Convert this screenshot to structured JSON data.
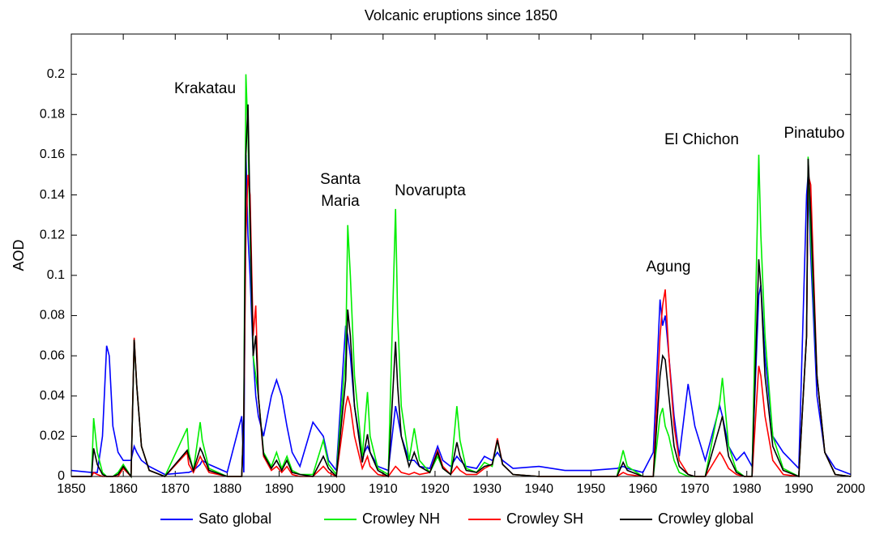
{
  "chart_data": {
    "type": "line",
    "title": "Volcanic eruptions since 1850",
    "y_label": "AOD",
    "xlim": [
      1850,
      2000
    ],
    "xticks": [
      1850,
      1860,
      1870,
      1880,
      1890,
      1900,
      1910,
      1920,
      1930,
      1940,
      1950,
      1960,
      1970,
      1980,
      1990,
      2000
    ],
    "ylim": [
      0,
      0.22
    ],
    "yticks": [
      0,
      0.02,
      0.04,
      0.06,
      0.08,
      0.1,
      0.12,
      0.14,
      0.16,
      0.18,
      0.2
    ],
    "grid": false,
    "legend": "bottom",
    "annotations": [
      [
        "Krakatau"
      ],
      [
        "Santa",
        "Maria"
      ],
      [
        "Novarupta"
      ],
      [
        "Agung"
      ],
      [
        "El Chichon"
      ],
      [
        "Pinatubo"
      ]
    ],
    "x": [
      1850,
      1853.9,
      1854.3,
      1855,
      1856,
      1856.8,
      1857.3,
      1858,
      1859,
      1860,
      1861.5,
      1862.1,
      1862.6,
      1863.5,
      1865,
      1868,
      1872.3,
      1872.6,
      1873.5,
      1874.8,
      1875.2,
      1876.5,
      1880,
      1882.8,
      1883.2,
      1883.6,
      1884,
      1884.4,
      1885,
      1885.5,
      1886,
      1887,
      1888.5,
      1889.5,
      1890.5,
      1891.5,
      1892.5,
      1894,
      1896.5,
      1898.5,
      1899.5,
      1901,
      1902.8,
      1903.2,
      1903.7,
      1904.5,
      1906,
      1907,
      1907.5,
      1909,
      1911,
      1912.4,
      1912.8,
      1913.5,
      1915,
      1916,
      1917,
      1919,
      1920.5,
      1921.5,
      1923,
      1924.2,
      1924.8,
      1926,
      1928,
      1929.5,
      1931,
      1932,
      1933,
      1935,
      1940,
      1945,
      1950,
      1955,
      1956.2,
      1957,
      1960,
      1962,
      1963.3,
      1963.8,
      1964.3,
      1965,
      1966,
      1967,
      1968.7,
      1970,
      1972,
      1974.8,
      1975.3,
      1976.5,
      1978,
      1979.5,
      1981,
      1982.3,
      1982.7,
      1983.5,
      1985,
      1987,
      1990,
      1991.5,
      1991.8,
      1992.3,
      1993.5,
      1995,
      1997,
      2000
    ],
    "series": [
      {
        "name": "Sato global",
        "color": "#0000ff",
        "values": [
          0.003,
          0.002,
          0.002,
          0.002,
          0.02,
          0.065,
          0.06,
          0.025,
          0.012,
          0.008,
          0.008,
          0.015,
          0.012,
          0.008,
          0.005,
          0.001,
          0.002,
          0.002,
          0.003,
          0.006,
          0.008,
          0.006,
          0.002,
          0.03,
          0.002,
          0.16,
          0.12,
          0.1,
          0.06,
          0.04,
          0.03,
          0.02,
          0.04,
          0.048,
          0.04,
          0.025,
          0.012,
          0.005,
          0.027,
          0.02,
          0.008,
          0.003,
          0.075,
          0.07,
          0.06,
          0.035,
          0.01,
          0.015,
          0.012,
          0.005,
          0.003,
          0.035,
          0.03,
          0.02,
          0.008,
          0.008,
          0.005,
          0.004,
          0.015,
          0.008,
          0.005,
          0.01,
          0.008,
          0.005,
          0.004,
          0.01,
          0.008,
          0.012,
          0.008,
          0.004,
          0.005,
          0.003,
          0.003,
          0.004,
          0.005,
          0.004,
          0.002,
          0.012,
          0.088,
          0.075,
          0.08,
          0.06,
          0.03,
          0.01,
          0.046,
          0.025,
          0.008,
          0.035,
          0.03,
          0.015,
          0.008,
          0.012,
          0.005,
          0.09,
          0.095,
          0.06,
          0.02,
          0.012,
          0.004,
          0.14,
          0.15,
          0.11,
          0.04,
          0.012,
          0.004,
          0.001
        ]
      },
      {
        "name": "Crowley NH",
        "color": "#00ee00",
        "values": [
          0,
          0,
          0.029,
          0.012,
          0.002,
          0,
          0,
          0,
          0.002,
          0.006,
          0,
          0.068,
          0.045,
          0.015,
          0.003,
          0,
          0.024,
          0.012,
          0.003,
          0.027,
          0.018,
          0.004,
          0,
          0,
          0.03,
          0.2,
          0.17,
          0.12,
          0.06,
          0.05,
          0.04,
          0.012,
          0.005,
          0.012,
          0.004,
          0.01,
          0.003,
          0.001,
          0.001,
          0.018,
          0.006,
          0.001,
          0.06,
          0.125,
          0.1,
          0.05,
          0.01,
          0.042,
          0.02,
          0.004,
          0.001,
          0.133,
          0.08,
          0.035,
          0.008,
          0.024,
          0.008,
          0.002,
          0.01,
          0.004,
          0.001,
          0.035,
          0.018,
          0.004,
          0.002,
          0.007,
          0.005,
          0.018,
          0.006,
          0.001,
          0,
          0,
          0,
          0,
          0.013,
          0.005,
          0,
          0,
          0.03,
          0.034,
          0.025,
          0.02,
          0.008,
          0.002,
          0,
          0,
          0,
          0.037,
          0.049,
          0.015,
          0.003,
          0,
          0,
          0.16,
          0.12,
          0.07,
          0.02,
          0.004,
          0,
          0.07,
          0.159,
          0.12,
          0.05,
          0.012,
          0.001,
          0
        ]
      },
      {
        "name": "Crowley SH",
        "color": "#ff0000",
        "values": [
          0,
          0,
          0.002,
          0.001,
          0,
          0,
          0,
          0,
          0,
          0.004,
          0,
          0.069,
          0.045,
          0.015,
          0.003,
          0,
          0.012,
          0.006,
          0.002,
          0.01,
          0.008,
          0.002,
          0,
          0,
          0.03,
          0.12,
          0.15,
          0.14,
          0.07,
          0.085,
          0.04,
          0.01,
          0.003,
          0.005,
          0.002,
          0.005,
          0.001,
          0,
          0,
          0.005,
          0.002,
          0,
          0.035,
          0.04,
          0.035,
          0.02,
          0.004,
          0.01,
          0.005,
          0.001,
          0,
          0.005,
          0.004,
          0.002,
          0.001,
          0.002,
          0.001,
          0.002,
          0.013,
          0.005,
          0.001,
          0.005,
          0.003,
          0.001,
          0.001,
          0.004,
          0.006,
          0.019,
          0.006,
          0.001,
          0,
          0,
          0,
          0,
          0.002,
          0.001,
          0,
          0,
          0.07,
          0.085,
          0.093,
          0.06,
          0.025,
          0.008,
          0.001,
          0,
          0,
          0.012,
          0.01,
          0.004,
          0.001,
          0,
          0,
          0.055,
          0.05,
          0.03,
          0.008,
          0.001,
          0,
          0.07,
          0.15,
          0.145,
          0.05,
          0.012,
          0.001,
          0
        ]
      },
      {
        "name": "Crowley global",
        "color": "#000000",
        "values": [
          0,
          0,
          0.014,
          0.006,
          0.001,
          0,
          0,
          0,
          0.001,
          0.005,
          0,
          0.068,
          0.045,
          0.015,
          0.003,
          0,
          0.013,
          0.01,
          0.003,
          0.014,
          0.012,
          0.003,
          0,
          0,
          0.03,
          0.16,
          0.185,
          0.13,
          0.06,
          0.07,
          0.04,
          0.011,
          0.004,
          0.008,
          0.003,
          0.008,
          0.002,
          0.001,
          0,
          0.01,
          0.004,
          0,
          0.048,
          0.083,
          0.07,
          0.035,
          0.007,
          0.021,
          0.012,
          0.003,
          0,
          0.067,
          0.045,
          0.02,
          0.005,
          0.012,
          0.005,
          0.002,
          0.012,
          0.004,
          0.001,
          0.017,
          0.01,
          0.003,
          0.002,
          0.005,
          0.006,
          0.018,
          0.006,
          0.001,
          0,
          0,
          0,
          0,
          0.007,
          0.003,
          0,
          0,
          0.05,
          0.06,
          0.058,
          0.04,
          0.015,
          0.005,
          0.001,
          0,
          0,
          0.025,
          0.03,
          0.01,
          0.002,
          0,
          0,
          0.108,
          0.095,
          0.05,
          0.015,
          0.003,
          0,
          0.07,
          0.158,
          0.13,
          0.05,
          0.012,
          0.001,
          0
        ]
      }
    ]
  }
}
